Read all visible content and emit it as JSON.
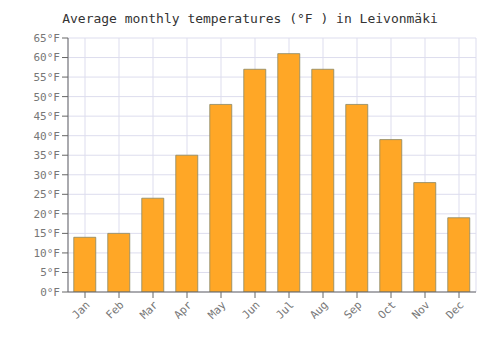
{
  "chart_data": {
    "type": "bar",
    "title": "Average monthly temperatures (°F ) in Leivonmäki",
    "categories": [
      "Jan",
      "Feb",
      "Mar",
      "Apr",
      "May",
      "Jun",
      "Jul",
      "Aug",
      "Sep",
      "Oct",
      "Nov",
      "Dec"
    ],
    "values": [
      14,
      15,
      24,
      35,
      48,
      57,
      61,
      57,
      48,
      39,
      28,
      19
    ],
    "color": "#FFA726",
    "ylim": [
      0,
      65
    ],
    "yticks": [
      {
        "value": 0,
        "label": "0°F"
      },
      {
        "value": 5,
        "label": "5°F"
      },
      {
        "value": 10,
        "label": "10°F"
      },
      {
        "value": 15,
        "label": "15°F"
      },
      {
        "value": 20,
        "label": "20°F"
      },
      {
        "value": 25,
        "label": "25°F"
      },
      {
        "value": 30,
        "label": "30°F"
      },
      {
        "value": 35,
        "label": "35°F"
      },
      {
        "value": 40,
        "label": "40°F"
      },
      {
        "value": 45,
        "label": "45°F"
      },
      {
        "value": 50,
        "label": "50°F"
      },
      {
        "value": 55,
        "label": "55°F"
      },
      {
        "value": 60,
        "label": "60°F"
      },
      {
        "value": 65,
        "label": "65°F"
      }
    ],
    "grid": true
  }
}
